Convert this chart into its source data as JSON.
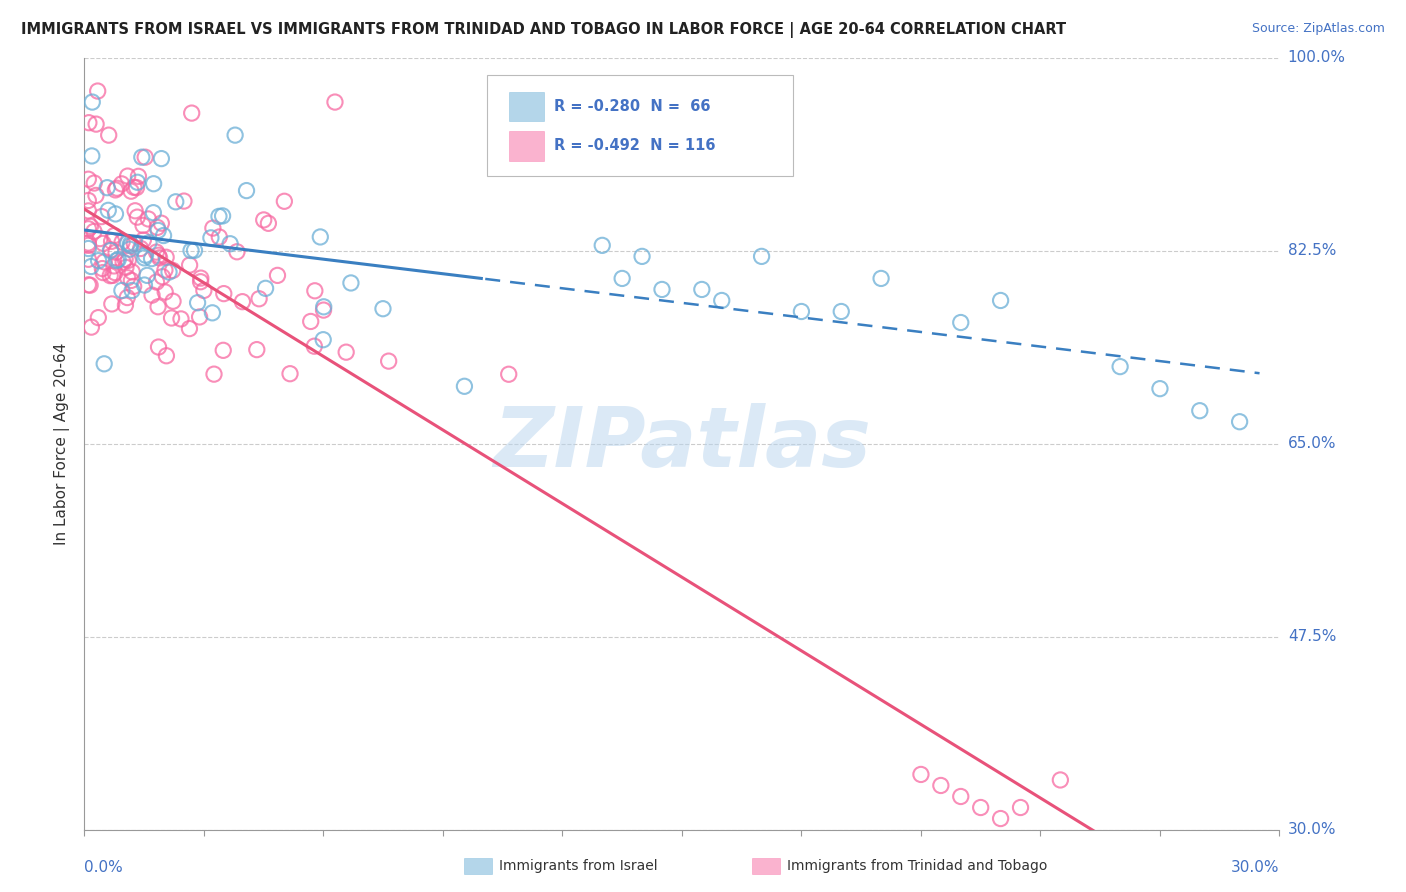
{
  "title": "IMMIGRANTS FROM ISRAEL VS IMMIGRANTS FROM TRINIDAD AND TOBAGO IN LABOR FORCE | AGE 20-64 CORRELATION CHART",
  "source": "Source: ZipAtlas.com",
  "ylabel_ticks": [
    "100.0%",
    "82.5%",
    "65.0%",
    "47.5%",
    "30.0%"
  ],
  "ylabel_label": "In Labor Force | Age 20-64",
  "watermark": "ZIPatlas",
  "xlim": [
    0.0,
    0.3
  ],
  "ylim": [
    0.3,
    1.0
  ],
  "israel_color": "#6aaed6",
  "tt_color": "#f768a1",
  "israel_line_color": "#3a7fc1",
  "tt_line_color": "#e8527a",
  "israel_N": 66,
  "tt_N": 116,
  "israel_R": -0.28,
  "tt_R": -0.492,
  "y_tick_vals": [
    1.0,
    0.825,
    0.65,
    0.475,
    0.3
  ],
  "background_color": "#ffffff"
}
